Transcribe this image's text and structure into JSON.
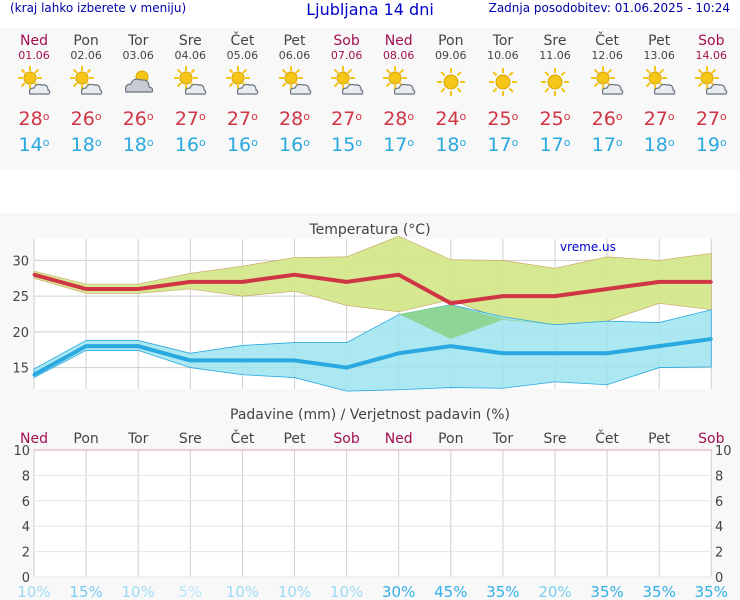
{
  "header": {
    "left_note": "(kraj lahko izberete v meniju)",
    "title": "Ljubljana 14 dni",
    "updated": "Zadnja posodobitev: 01.06.2025 - 10:24"
  },
  "colors": {
    "max_temp": "#d03545",
    "min_temp": "#2aa8e0",
    "weekend": "#a01050",
    "link": "#0000cc",
    "max_band": "#d4e88c",
    "min_band": "#9ee4f0",
    "overlap_band": "#8cd48c"
  },
  "days": [
    {
      "name": "Ned",
      "date": "01.06",
      "icon": "sun-cloud-icon",
      "max": "28",
      "min": "14",
      "weekend": true
    },
    {
      "name": "Pon",
      "date": "02.06",
      "icon": "sun-cloud-icon",
      "max": "26",
      "min": "18",
      "weekend": false
    },
    {
      "name": "Tor",
      "date": "03.06",
      "icon": "cloud-sun-icon",
      "max": "26",
      "min": "18",
      "weekend": false
    },
    {
      "name": "Sre",
      "date": "04.06",
      "icon": "sun-cloud-icon",
      "max": "27",
      "min": "16",
      "weekend": false
    },
    {
      "name": "Čet",
      "date": "05.06",
      "icon": "sun-cloud-icon",
      "max": "27",
      "min": "16",
      "weekend": false
    },
    {
      "name": "Pet",
      "date": "06.06",
      "icon": "sun-cloud-icon",
      "max": "28",
      "min": "16",
      "weekend": false
    },
    {
      "name": "Sob",
      "date": "07.06",
      "icon": "sun-cloud-icon",
      "max": "27",
      "min": "15",
      "weekend": true
    },
    {
      "name": "Ned",
      "date": "08.06",
      "icon": "sun-cloud-icon",
      "max": "28",
      "min": "17",
      "weekend": true
    },
    {
      "name": "Pon",
      "date": "09.06",
      "icon": "sun-icon",
      "max": "24",
      "min": "18",
      "weekend": false
    },
    {
      "name": "Tor",
      "date": "10.06",
      "icon": "sun-icon",
      "max": "25",
      "min": "17",
      "weekend": false
    },
    {
      "name": "Sre",
      "date": "11.06",
      "icon": "sun-icon",
      "max": "25",
      "min": "17",
      "weekend": false
    },
    {
      "name": "Čet",
      "date": "12.06",
      "icon": "sun-cloud-icon",
      "max": "26",
      "min": "17",
      "weekend": false
    },
    {
      "name": "Pet",
      "date": "13.06",
      "icon": "sun-cloud-icon",
      "max": "27",
      "min": "18",
      "weekend": false
    },
    {
      "name": "Sob",
      "date": "14.06",
      "icon": "sun-cloud-icon",
      "max": "27",
      "min": "19",
      "weekend": true
    }
  ],
  "temp_chart": {
    "title": "Temperatura (°C)",
    "watermark": "vreme.us"
  },
  "precip_chart": {
    "title": "Padavine (mm) / Verjetnost padavin (%)"
  },
  "chart_data": [
    {
      "type": "area",
      "title": "Temperatura (°C)",
      "x": [
        "Ned",
        "Pon",
        "Tor",
        "Sre",
        "Čet",
        "Pet",
        "Sob",
        "Ned",
        "Pon",
        "Tor",
        "Sre",
        "Čet",
        "Pet",
        "Sob"
      ],
      "ylim": [
        12,
        33
      ],
      "yticks": [
        15,
        20,
        25,
        30
      ],
      "grid": true,
      "series": [
        {
          "name": "max",
          "values": [
            28,
            26,
            26,
            27,
            27,
            28,
            27,
            28,
            24,
            25,
            25,
            26,
            27,
            27
          ]
        },
        {
          "name": "max_upper",
          "values": [
            28.5,
            26.7,
            26.7,
            28.2,
            29.2,
            30.4,
            30.5,
            33.4,
            30.1,
            30.0,
            28.9,
            30.5,
            30.0,
            31.0
          ]
        },
        {
          "name": "max_lower",
          "values": [
            27.5,
            25.4,
            25.4,
            26.0,
            25.0,
            25.7,
            23.7,
            22.8,
            24.5,
            21.7,
            21.0,
            21.5,
            24.0,
            23.1
          ]
        },
        {
          "name": "min",
          "values": [
            14,
            18,
            18,
            16,
            16,
            16,
            15,
            17,
            18,
            17,
            17,
            17,
            18,
            19
          ]
        },
        {
          "name": "min_upper",
          "values": [
            14.8,
            18.8,
            18.8,
            17.0,
            18.1,
            18.5,
            18.5,
            22.4,
            23.8,
            22.1,
            21.0,
            21.5,
            21.3,
            23.1
          ]
        },
        {
          "name": "min_lower",
          "values": [
            13.6,
            17.4,
            17.4,
            15.0,
            14.0,
            13.6,
            11.7,
            11.9,
            12.2,
            12.1,
            13.0,
            12.6,
            15.0,
            15.1
          ]
        }
      ]
    },
    {
      "type": "bar",
      "title": "Padavine (mm) / Verjetnost padavin (%)",
      "categories": [
        "Ned",
        "Pon",
        "Tor",
        "Sre",
        "Čet",
        "Pet",
        "Sob",
        "Ned",
        "Pon",
        "Tor",
        "Sre",
        "Čet",
        "Pet",
        "Sob"
      ],
      "values": [
        0,
        0,
        0,
        0,
        0,
        0,
        0,
        0,
        0,
        0,
        0,
        0,
        0,
        0
      ],
      "probability_labels": [
        "10%",
        "15%",
        "10%",
        "5%",
        "10%",
        "10%",
        "10%",
        "30%",
        "45%",
        "35%",
        "20%",
        "35%",
        "35%",
        "35%"
      ],
      "probability": [
        10,
        15,
        10,
        5,
        10,
        10,
        10,
        30,
        45,
        35,
        20,
        35,
        35,
        35
      ],
      "ylim": [
        0,
        10
      ],
      "yticks": [
        0,
        2,
        4,
        6,
        8,
        10
      ],
      "grid": true
    }
  ]
}
